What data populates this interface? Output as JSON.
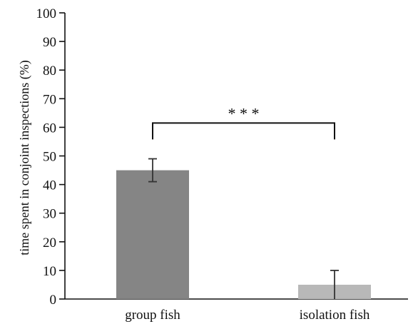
{
  "chart_data": {
    "type": "bar",
    "categories": [
      "group fish",
      "isolation fish"
    ],
    "values": [
      45,
      5
    ],
    "error_high": [
      49,
      10
    ],
    "error_low": [
      41,
      0
    ],
    "colors": [
      "#858585",
      "#b8b8b8"
    ],
    "ylabel": "time spent in conjoint inspections (%)",
    "ylim": [
      0,
      100
    ],
    "yticks": [
      0,
      10,
      20,
      30,
      40,
      50,
      60,
      70,
      80,
      90,
      100
    ],
    "ytick_labels": [
      "0",
      "10",
      "20",
      "30",
      "40",
      "50",
      "60",
      "70",
      "80",
      "90",
      "100"
    ],
    "grid": false,
    "significance": {
      "label": "* * *",
      "level": 61.5
    }
  }
}
